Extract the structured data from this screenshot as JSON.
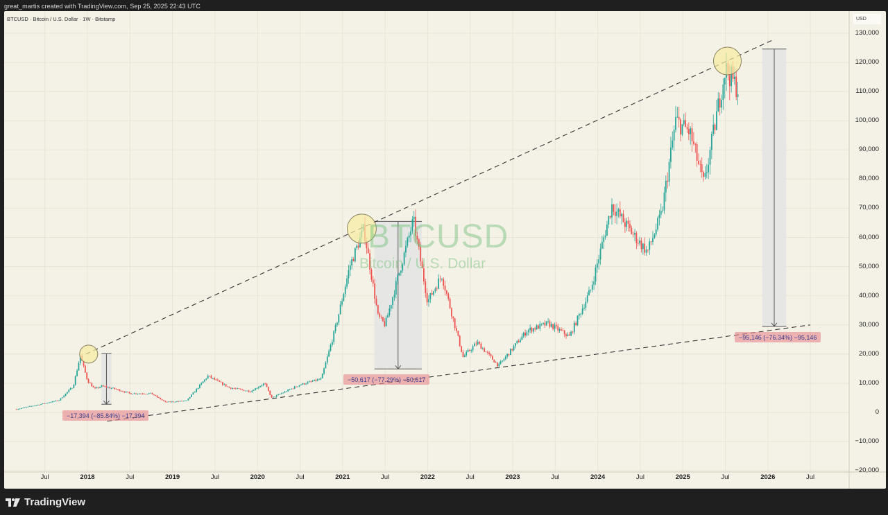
{
  "header": {
    "caption": "great_martis created with TradingView.com, Sep 25, 2025 22:43 UTC",
    "symbol_line": "BTCUSD · Bitcoin / U.S. Dollar · 1W · Bitstamp"
  },
  "watermark": {
    "symbol": "BTCUSD",
    "description": "Bitcoin / U.S. Dollar"
  },
  "price_axis": {
    "currency": "USD",
    "ticks": [
      "130,000",
      "120,000",
      "110,000",
      "100,000",
      "90,000",
      "80,000",
      "70,000",
      "60,000",
      "50,000",
      "40,000",
      "30,000",
      "20,000",
      "10,000",
      "0",
      "−10,000",
      "−20,000"
    ]
  },
  "time_axis": {
    "ticks": [
      {
        "label": "Jul",
        "major": false
      },
      {
        "label": "2018",
        "major": true
      },
      {
        "label": "Jul",
        "major": false
      },
      {
        "label": "2019",
        "major": true
      },
      {
        "label": "Jul",
        "major": false
      },
      {
        "label": "2020",
        "major": true
      },
      {
        "label": "Jul",
        "major": false
      },
      {
        "label": "2021",
        "major": true
      },
      {
        "label": "Jul",
        "major": false
      },
      {
        "label": "2022",
        "major": true
      },
      {
        "label": "Jul",
        "major": false
      },
      {
        "label": "2023",
        "major": true
      },
      {
        "label": "Jul",
        "major": false
      },
      {
        "label": "2024",
        "major": true
      },
      {
        "label": "Jul",
        "major": false
      },
      {
        "label": "2025",
        "major": true
      },
      {
        "label": "Jul",
        "major": false
      },
      {
        "label": "2026",
        "major": true
      },
      {
        "label": "Jul",
        "major": false
      }
    ]
  },
  "annotations": {
    "measure_2018": "−17,394 (−85.84%) −17,394",
    "measure_2021": "−50,617 (−77.29%) −50,617",
    "measure_2025": "−95,146 (−76.34%) −95,146"
  },
  "footer": {
    "brand": "TradingView"
  },
  "colors": {
    "up": "#26a69a",
    "down": "#ef5350",
    "background": "#f4f1e6",
    "grid": "#e8e4d6",
    "circle_fill": "#f6ec9f",
    "measure_box": "#e3e5e3",
    "label_bg": "#e7878c",
    "label_text": "#3a3f8f"
  },
  "chart_data": {
    "type": "candlestick",
    "title": "BTCUSD · Bitcoin / U.S. Dollar · 1W · Bitstamp",
    "xlabel": "",
    "ylabel": "USD",
    "ylim": [
      -20000,
      130000
    ],
    "xlim": [
      "2017-03",
      "2026-09"
    ],
    "grid": true,
    "interval": "1W",
    "price_path": [
      {
        "date": "2017-03",
        "close": 1100
      },
      {
        "date": "2017-06",
        "close": 2600
      },
      {
        "date": "2017-09",
        "close": 4200
      },
      {
        "date": "2017-11",
        "close": 9000
      },
      {
        "date": "2017-12",
        "close": 19500
      },
      {
        "date": "2018-01",
        "close": 11000
      },
      {
        "date": "2018-02",
        "close": 8000
      },
      {
        "date": "2018-03",
        "close": 9000
      },
      {
        "date": "2018-05",
        "close": 8000
      },
      {
        "date": "2018-07",
        "close": 6500
      },
      {
        "date": "2018-10",
        "close": 6500
      },
      {
        "date": "2018-12",
        "close": 3500
      },
      {
        "date": "2019-03",
        "close": 4000
      },
      {
        "date": "2019-06",
        "close": 12500
      },
      {
        "date": "2019-09",
        "close": 8500
      },
      {
        "date": "2019-12",
        "close": 7200
      },
      {
        "date": "2020-02",
        "close": 10000
      },
      {
        "date": "2020-03",
        "close": 5000
      },
      {
        "date": "2020-07",
        "close": 9500
      },
      {
        "date": "2020-10",
        "close": 11500
      },
      {
        "date": "2020-12",
        "close": 29000
      },
      {
        "date": "2021-02",
        "close": 50000
      },
      {
        "date": "2021-04",
        "close": 63000
      },
      {
        "date": "2021-06",
        "close": 33000
      },
      {
        "date": "2021-07",
        "close": 30000
      },
      {
        "date": "2021-09",
        "close": 48000
      },
      {
        "date": "2021-11",
        "close": 66000
      },
      {
        "date": "2022-01",
        "close": 38000
      },
      {
        "date": "2022-03",
        "close": 47000
      },
      {
        "date": "2022-06",
        "close": 19000
      },
      {
        "date": "2022-08",
        "close": 24000
      },
      {
        "date": "2022-11",
        "close": 16000
      },
      {
        "date": "2023-03",
        "close": 28000
      },
      {
        "date": "2023-06",
        "close": 30500
      },
      {
        "date": "2023-09",
        "close": 26000
      },
      {
        "date": "2023-12",
        "close": 42000
      },
      {
        "date": "2024-03",
        "close": 71000
      },
      {
        "date": "2024-06",
        "close": 61000
      },
      {
        "date": "2024-08",
        "close": 55000
      },
      {
        "date": "2024-10",
        "close": 68000
      },
      {
        "date": "2024-12",
        "close": 100000
      },
      {
        "date": "2025-02",
        "close": 96000
      },
      {
        "date": "2025-04",
        "close": 78000
      },
      {
        "date": "2025-06",
        "close": 105000
      },
      {
        "date": "2025-07",
        "close": 118000
      },
      {
        "date": "2025-09",
        "close": 110000
      }
    ],
    "trendlines": [
      {
        "name": "upper-resistance",
        "style": "dashed",
        "from": {
          "date": "2017-12",
          "price": 20000
        },
        "to": {
          "date": "2026-01",
          "price": 128000
        }
      },
      {
        "name": "lower-support",
        "style": "dashed",
        "from": {
          "date": "2018-03",
          "price": -3000
        },
        "to": {
          "date": "2026-06",
          "price": 30000
        }
      }
    ],
    "highlight_circles": [
      {
        "date": "2017-12",
        "price": 20000
      },
      {
        "date": "2021-04",
        "price": 63000
      },
      {
        "date": "2025-08",
        "price": 121000
      }
    ],
    "measurements": [
      {
        "from_price": 20200,
        "to_price": 2800,
        "change": -17394,
        "percent": -85.84,
        "label": "−17,394 (−85.84%) −17,394"
      },
      {
        "from_price": 65500,
        "to_price": 14900,
        "change": -50617,
        "percent": -77.29,
        "label": "−50,617 (−77.29%) −50,617"
      },
      {
        "from_price": 124600,
        "to_price": 29500,
        "change": -95146,
        "percent": -76.34,
        "label": "−95,146 (−76.34%) −95,146"
      }
    ]
  }
}
